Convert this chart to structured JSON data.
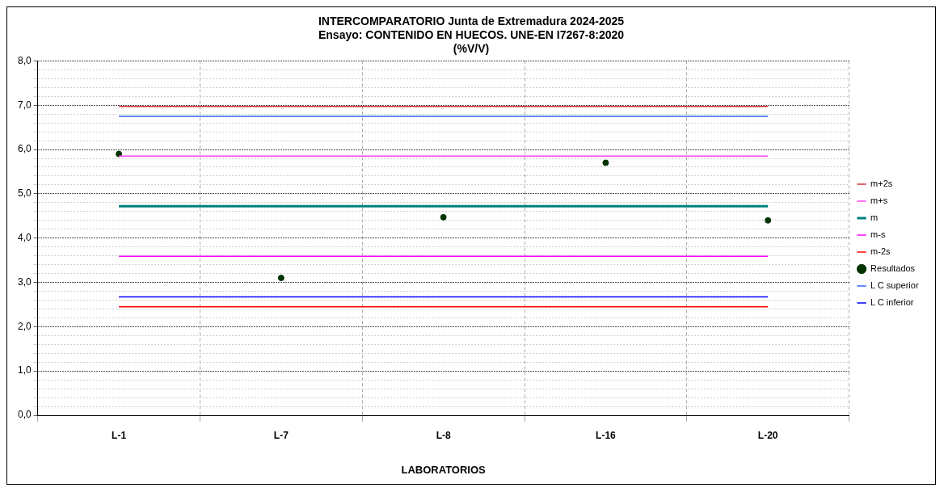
{
  "chart_data": {
    "type": "line",
    "title": [
      "INTERCOMPARATORIO Junta de Extremadura 2024-2025",
      "Ensayo: CONTENIDO EN HUECOS. UNE-EN I7267-8:2020",
      "(%V/V)"
    ],
    "xlabel": "LABORATORIOS",
    "categories": [
      "L-1",
      "L-7",
      "L-8",
      "L-16",
      "L-20"
    ],
    "series": [
      {
        "name": "m+2s",
        "color": "#cc3333",
        "values": [
          6.97,
          6.97,
          6.97,
          6.97,
          6.97
        ]
      },
      {
        "name": "m+s",
        "color": "#ff44ff",
        "values": [
          5.85,
          5.85,
          5.85,
          5.85,
          5.85
        ]
      },
      {
        "name": "m",
        "color": "#008080",
        "values": [
          4.72,
          4.72,
          4.72,
          4.72,
          4.72
        ]
      },
      {
        "name": "m-s",
        "color": "#ff00ff",
        "values": [
          3.59,
          3.59,
          3.59,
          3.59,
          3.59
        ]
      },
      {
        "name": "m-2s",
        "color": "#ff0000",
        "values": [
          2.45,
          2.45,
          2.45,
          2.45,
          2.45
        ]
      },
      {
        "name": "Resultados",
        "type": "scatter",
        "marker": "circle",
        "color": "#003300",
        "values": [
          5.9,
          3.1,
          4.47,
          5.7,
          4.4
        ]
      },
      {
        "name": "L C superior",
        "color": "#3366ff",
        "values": [
          6.75,
          6.75,
          6.75,
          6.75,
          6.75
        ]
      },
      {
        "name": "L C inferior",
        "color": "#0000ff",
        "values": [
          2.67,
          2.67,
          2.67,
          2.67,
          2.67
        ]
      }
    ],
    "ylim": [
      0,
      8
    ],
    "yticks": [
      {
        "value": 0,
        "label": "0,0"
      },
      {
        "value": 0.2,
        "label": null
      },
      {
        "value": 0.4,
        "label": null
      },
      {
        "value": 0.6,
        "label": null
      },
      {
        "value": 0.8,
        "label": null
      },
      {
        "value": 1,
        "label": "1,0"
      },
      {
        "value": 1.2,
        "label": null
      },
      {
        "value": 1.4,
        "label": null
      },
      {
        "value": 1.6,
        "label": null
      },
      {
        "value": 1.8,
        "label": null
      },
      {
        "value": 2,
        "label": "2,0"
      },
      {
        "value": 2.2,
        "label": null
      },
      {
        "value": 2.4,
        "label": null
      },
      {
        "value": 2.6,
        "label": null
      },
      {
        "value": 2.8,
        "label": null
      },
      {
        "value": 3,
        "label": "3,0"
      },
      {
        "value": 3.2,
        "label": null
      },
      {
        "value": 3.4,
        "label": null
      },
      {
        "value": 3.6,
        "label": null
      },
      {
        "value": 3.8,
        "label": null
      },
      {
        "value": 4,
        "label": "4,0"
      },
      {
        "value": 4.2,
        "label": null
      },
      {
        "value": 4.4,
        "label": null
      },
      {
        "value": 4.6,
        "label": null
      },
      {
        "value": 4.8,
        "label": null
      },
      {
        "value": 5,
        "label": "5,0"
      },
      {
        "value": 5.2,
        "label": null
      },
      {
        "value": 5.4,
        "label": null
      },
      {
        "value": 5.6,
        "label": null
      },
      {
        "value": 5.8,
        "label": null
      },
      {
        "value": 6,
        "label": "6,0"
      },
      {
        "value": 6.2,
        "label": null
      },
      {
        "value": 6.4,
        "label": null
      },
      {
        "value": 6.6,
        "label": null
      },
      {
        "value": 6.8,
        "label": null
      },
      {
        "value": 7,
        "label": "7,0"
      },
      {
        "value": 7.2,
        "label": null
      },
      {
        "value": 7.4,
        "label": null
      },
      {
        "value": 7.6,
        "label": null
      },
      {
        "value": 7.8,
        "label": null
      },
      {
        "value": 8,
        "label": "8,0"
      }
    ],
    "grid": true,
    "legend": "right"
  }
}
